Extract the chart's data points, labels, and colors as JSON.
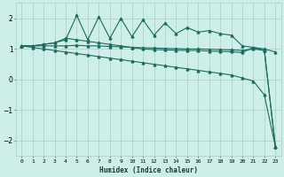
{
  "xlabel": "Humidex (Indice chaleur)",
  "bg_color": "#ceeee8",
  "line_color": "#1a6b5e",
  "grid_color": "#aacec8",
  "xlim": [
    -0.5,
    23.5
  ],
  "ylim": [
    -2.5,
    2.5
  ],
  "yticks": [
    -2,
    -1,
    0,
    1,
    2
  ],
  "xtick_labels": [
    "0",
    "1",
    "2",
    "3",
    "4",
    "5",
    "6",
    "7",
    "8",
    "9",
    "10",
    "11",
    "12",
    "13",
    "14",
    "15",
    "16",
    "17",
    "18",
    "19",
    "20",
    "21",
    "22",
    "23"
  ],
  "series1_x": [
    0,
    1,
    2,
    3,
    4,
    5,
    6,
    7,
    8,
    9,
    10,
    11,
    12,
    13,
    14,
    15,
    16,
    17,
    18,
    19,
    20,
    21,
    22,
    23
  ],
  "series1_y": [
    1.1,
    1.1,
    1.15,
    1.2,
    1.3,
    2.1,
    1.3,
    2.05,
    1.35,
    2.0,
    1.4,
    1.95,
    1.45,
    1.85,
    1.5,
    1.7,
    1.55,
    1.6,
    1.5,
    1.45,
    1.1,
    1.05,
    1.0,
    0.9
  ],
  "series2_x": [
    0,
    1,
    2,
    3,
    4,
    5,
    6,
    7,
    8,
    9,
    10,
    11,
    12,
    13,
    14,
    15,
    16,
    17,
    18,
    19,
    20,
    21,
    22,
    23
  ],
  "series2_y": [
    1.1,
    1.1,
    1.15,
    1.2,
    1.35,
    1.3,
    1.25,
    1.2,
    1.15,
    1.1,
    1.05,
    1.0,
    0.98,
    0.97,
    0.96,
    0.95,
    0.95,
    0.93,
    0.92,
    0.91,
    0.88,
    1.05,
    0.95,
    -2.2
  ],
  "series3_x": [
    0,
    1,
    2,
    3,
    4,
    5,
    6,
    7,
    8,
    9,
    10,
    11,
    12,
    13,
    14,
    15,
    16,
    17,
    18,
    19,
    20,
    21,
    22,
    23
  ],
  "series3_y": [
    1.1,
    1.1,
    1.1,
    1.1,
    1.1,
    1.12,
    1.1,
    1.1,
    1.08,
    1.07,
    1.05,
    1.04,
    1.03,
    1.02,
    1.01,
    1.0,
    1.0,
    0.99,
    0.98,
    0.97,
    0.95,
    1.0,
    0.95,
    -2.2
  ],
  "series4_x": [
    0,
    1,
    2,
    3,
    4,
    5,
    6,
    7,
    8,
    9,
    10,
    11,
    12,
    13,
    14,
    15,
    16,
    17,
    18,
    19,
    20,
    21,
    22,
    23
  ],
  "series4_y": [
    1.1,
    1.05,
    1.0,
    0.95,
    0.9,
    0.85,
    0.8,
    0.75,
    0.7,
    0.65,
    0.6,
    0.55,
    0.5,
    0.45,
    0.4,
    0.35,
    0.3,
    0.25,
    0.2,
    0.15,
    0.05,
    -0.05,
    -0.5,
    -2.2
  ],
  "marker": "^",
  "marker_size": 2,
  "linewidth": 0.8
}
